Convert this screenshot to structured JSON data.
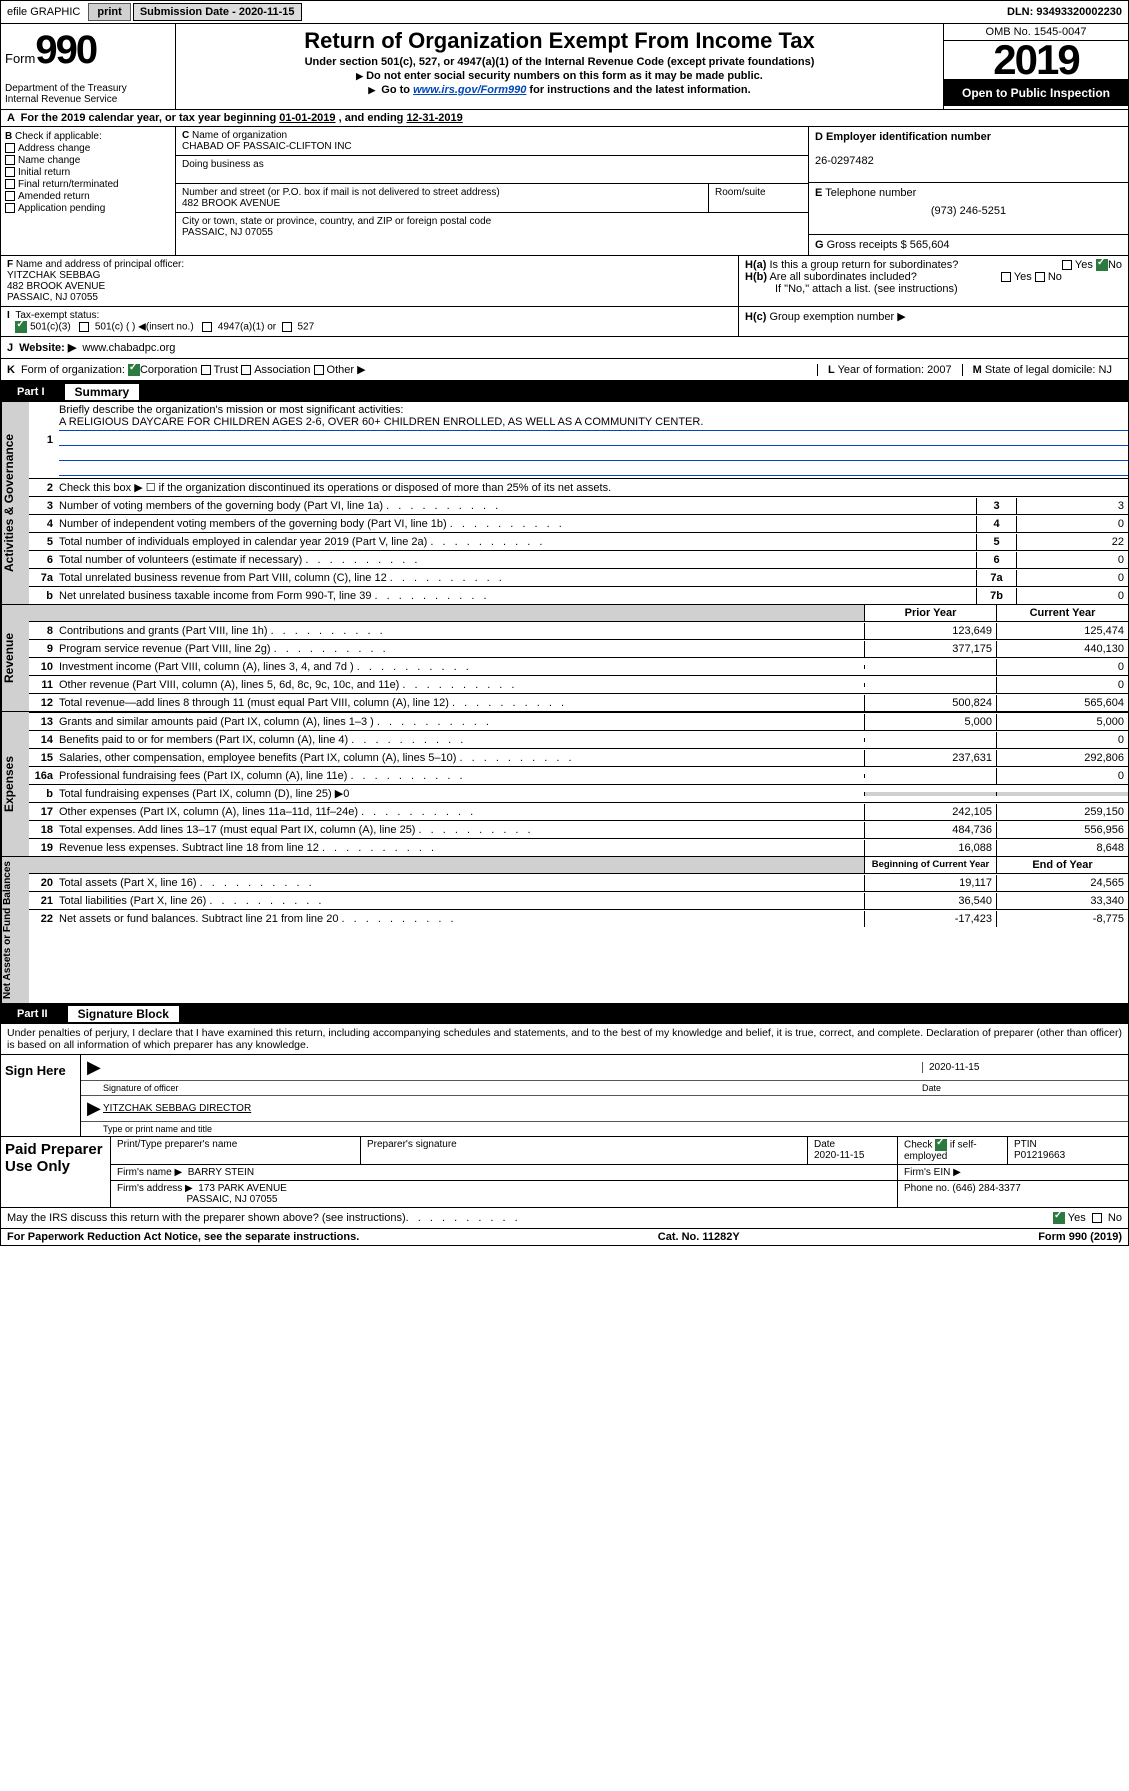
{
  "topbar": {
    "efile_label": "efile GRAPHIC",
    "print_btn": "print",
    "sub_label": "Submission Date - 2020-11-15",
    "dln": "DLN: 93493320002230"
  },
  "header": {
    "form_word": "Form",
    "form_num": "990",
    "dept": "Department of the Treasury\nInternal Revenue Service",
    "title": "Return of Organization Exempt From Income Tax",
    "line1": "Under section 501(c), 527, or 4947(a)(1) of the Internal Revenue Code (except private foundations)",
    "line2": "Do not enter social security numbers on this form as it may be made public.",
    "line3_pre": "Go to ",
    "line3_link": "www.irs.gov/Form990",
    "line3_post": " for instructions and the latest information.",
    "omb": "OMB No. 1545-0047",
    "year": "2019",
    "public": "Open to Public Inspection"
  },
  "period": {
    "text_pre": "For the 2019 calendar year, or tax year beginning ",
    "begin": "01-01-2019",
    "mid": " , and ending ",
    "end": "12-31-2019"
  },
  "boxB": {
    "label": "Check if applicable:",
    "items": [
      "Address change",
      "Name change",
      "Initial return",
      "Final return/terminated",
      "Amended return",
      "Application pending"
    ]
  },
  "boxC": {
    "name_label": "Name of organization",
    "name": "CHABAD OF PASSAIC-CLIFTON INC",
    "dba_label": "Doing business as",
    "addr_label": "Number and street (or P.O. box if mail is not delivered to street address)",
    "addr": "482 BROOK AVENUE",
    "room_label": "Room/suite",
    "city_label": "City or town, state or province, country, and ZIP or foreign postal code",
    "city": "PASSAIC, NJ  07055"
  },
  "boxD": {
    "label": "Employer identification number",
    "value": "26-0297482"
  },
  "boxE": {
    "label": "Telephone number",
    "value": "(973) 246-5251"
  },
  "boxG": {
    "label": "Gross receipts $",
    "value": "565,604"
  },
  "boxF": {
    "label": "Name and address of principal officer:",
    "name": "YITZCHAK SEBBAG",
    "addr": "482 BROOK AVENUE",
    "city": "PASSAIC, NJ  07055"
  },
  "boxH": {
    "a": "Is this a group return for subordinates?",
    "b": "Are all subordinates included?",
    "b_note": "If \"No,\" attach a list. (see instructions)",
    "c": "Group exemption number ▶"
  },
  "boxI": {
    "label": "Tax-exempt status:",
    "opt1": "501(c)(3)",
    "opt2": "501(c) (   ) ◀(insert no.)",
    "opt3": "4947(a)(1) or",
    "opt4": "527"
  },
  "boxJ": {
    "label": "Website: ▶",
    "value": "www.chabadpc.org"
  },
  "boxK": {
    "label": "Form of organization:",
    "o1": "Corporation",
    "o2": "Trust",
    "o3": "Association",
    "o4": "Other ▶"
  },
  "boxL": {
    "label": "Year of formation:",
    "value": "2007"
  },
  "boxM": {
    "label": "State of legal domicile:",
    "value": "NJ"
  },
  "part1": {
    "label": "Part I",
    "title": "Summary",
    "q1": "Briefly describe the organization's mission or most significant activities:",
    "mission": "A RELIGIOUS DAYCARE FOR CHILDREN AGES 2-6, OVER 60+ CHILDREN ENROLLED, AS WELL AS A COMMUNITY CENTER.",
    "q2": "Check this box ▶ ☐  if the organization discontinued its operations or disposed of more than 25% of its net assets.",
    "lines_gov": [
      {
        "n": "3",
        "t": "Number of voting members of the governing body (Part VI, line 1a)",
        "lbl": "3",
        "v": "3"
      },
      {
        "n": "4",
        "t": "Number of independent voting members of the governing body (Part VI, line 1b)",
        "lbl": "4",
        "v": "0"
      },
      {
        "n": "5",
        "t": "Total number of individuals employed in calendar year 2019 (Part V, line 2a)",
        "lbl": "5",
        "v": "22"
      },
      {
        "n": "6",
        "t": "Total number of volunteers (estimate if necessary)",
        "lbl": "6",
        "v": "0"
      },
      {
        "n": "7a",
        "t": "Total unrelated business revenue from Part VIII, column (C), line 12",
        "lbl": "7a",
        "v": "0"
      },
      {
        "n": "b",
        "t": "Net unrelated business taxable income from Form 990-T, line 39",
        "lbl": "7b",
        "v": "0"
      }
    ],
    "prior_label": "Prior Year",
    "current_label": "Current Year",
    "rev_lines": [
      {
        "n": "8",
        "t": "Contributions and grants (Part VIII, line 1h)",
        "p": "123,649",
        "c": "125,474"
      },
      {
        "n": "9",
        "t": "Program service revenue (Part VIII, line 2g)",
        "p": "377,175",
        "c": "440,130"
      },
      {
        "n": "10",
        "t": "Investment income (Part VIII, column (A), lines 3, 4, and 7d )",
        "p": "",
        "c": "0"
      },
      {
        "n": "11",
        "t": "Other revenue (Part VIII, column (A), lines 5, 6d, 8c, 9c, 10c, and 11e)",
        "p": "",
        "c": "0"
      },
      {
        "n": "12",
        "t": "Total revenue—add lines 8 through 11 (must equal Part VIII, column (A), line 12)",
        "p": "500,824",
        "c": "565,604"
      }
    ],
    "exp_lines": [
      {
        "n": "13",
        "t": "Grants and similar amounts paid (Part IX, column (A), lines 1–3 )",
        "p": "5,000",
        "c": "5,000"
      },
      {
        "n": "14",
        "t": "Benefits paid to or for members (Part IX, column (A), line 4)",
        "p": "",
        "c": "0"
      },
      {
        "n": "15",
        "t": "Salaries, other compensation, employee benefits (Part IX, column (A), lines 5–10)",
        "p": "237,631",
        "c": "292,806"
      },
      {
        "n": "16a",
        "t": "Professional fundraising fees (Part IX, column (A), line 11e)",
        "p": "",
        "c": "0"
      },
      {
        "n": "b",
        "t": "Total fundraising expenses (Part IX, column (D), line 25) ▶0",
        "p": "GREY",
        "c": "GREY"
      },
      {
        "n": "17",
        "t": "Other expenses (Part IX, column (A), lines 11a–11d, 11f–24e)",
        "p": "242,105",
        "c": "259,150"
      },
      {
        "n": "18",
        "t": "Total expenses. Add lines 13–17 (must equal Part IX, column (A), line 25)",
        "p": "484,736",
        "c": "556,956"
      },
      {
        "n": "19",
        "t": "Revenue less expenses. Subtract line 18 from line 12",
        "p": "16,088",
        "c": "8,648"
      }
    ],
    "bcy_label": "Beginning of Current Year",
    "eoy_label": "End of Year",
    "na_lines": [
      {
        "n": "20",
        "t": "Total assets (Part X, line 16)",
        "p": "19,117",
        "c": "24,565"
      },
      {
        "n": "21",
        "t": "Total liabilities (Part X, line 26)",
        "p": "36,540",
        "c": "33,340"
      },
      {
        "n": "22",
        "t": "Net assets or fund balances. Subtract line 21 from line 20",
        "p": "-17,423",
        "c": "-8,775"
      }
    ]
  },
  "part2": {
    "label": "Part II",
    "title": "Signature Block",
    "perjury": "Under penalties of perjury, I declare that I have examined this return, including accompanying schedules and statements, and to the best of my knowledge and belief, it is true, correct, and complete. Declaration of preparer (other than officer) is based on all information of which preparer has any knowledge.",
    "sign_here": "Sign Here",
    "sig_date": "2020-11-15",
    "sig_officer": "Signature of officer",
    "date_lbl": "Date",
    "typed_name": "YITZCHAK SEBBAG  DIRECTOR",
    "typed_lbl": "Type or print name and title",
    "paid_label": "Paid Preparer Use Only",
    "p_name_lbl": "Print/Type preparer's name",
    "p_sig_lbl": "Preparer's signature",
    "p_date_lbl": "Date",
    "p_date": "2020-11-15",
    "p_check_lbl": "Check ",
    "p_self": "if self-employed",
    "ptin_lbl": "PTIN",
    "ptin": "P01219663",
    "firm_name_lbl": "Firm's name    ▶",
    "firm_name": "BARRY STEIN",
    "firm_ein_lbl": "Firm's EIN ▶",
    "firm_addr_lbl": "Firm's address ▶",
    "firm_addr": "173 PARK AVENUE",
    "firm_city": "PASSAIC, NJ  07055",
    "phone_lbl": "Phone no.",
    "phone": "(646) 284-3377",
    "discuss": "May the IRS discuss this return with the preparer shown above? (see instructions)",
    "paperwork": "For Paperwork Reduction Act Notice, see the separate instructions.",
    "cat": "Cat. No. 11282Y",
    "form_foot": "Form 990 (2019)"
  },
  "side_labels": {
    "gov": "Activities & Governance",
    "rev": "Revenue",
    "exp": "Expenses",
    "na": "Net Assets or Fund Balances"
  }
}
